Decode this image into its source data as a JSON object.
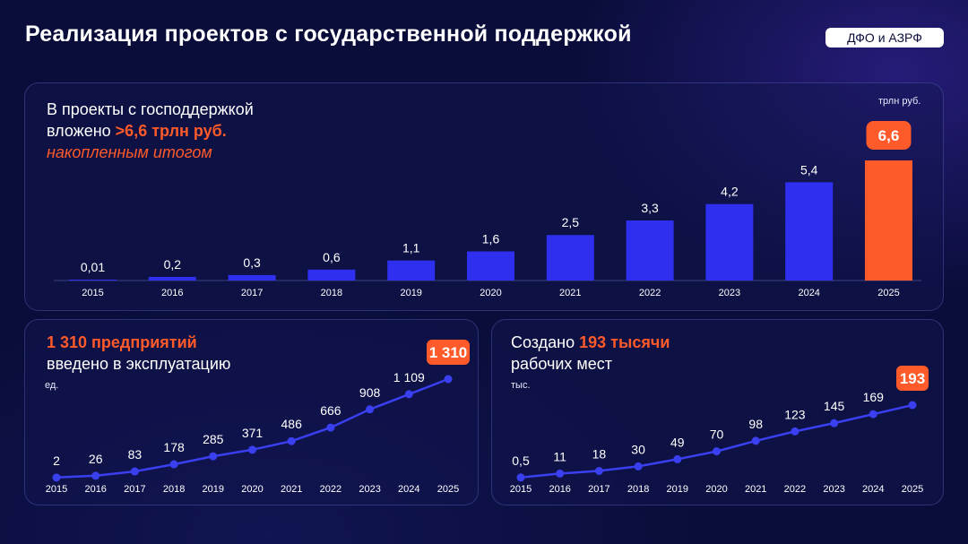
{
  "header": {
    "title": "Реализация проектов с государственной поддержкой",
    "badge": "ДФО и АЗРФ"
  },
  "colors": {
    "background": "#0a0d3a",
    "bar": "#2f2ff0",
    "highlight": "#ff5a2a",
    "line": "#3a3ff0"
  },
  "investments": {
    "headline_line1": "В проекты с господдержкой",
    "headline_line2_prefix": "вложено ",
    "headline_line2_accent": ">6,6 трлн руб.",
    "headline_line3": "накопленным итогом"
  },
  "enterprises": {
    "headline_accent": "1 310 предприятий",
    "headline_line2": "введено в эксплуатацию"
  },
  "jobs": {
    "headline_prefix": "Создано ",
    "headline_accent": "193 тысячи",
    "headline_line2": "рабочих мест"
  },
  "chart_data": [
    {
      "type": "bar",
      "unit_label": "трлн руб.",
      "categories": [
        "2015",
        "2016",
        "2017",
        "2018",
        "2019",
        "2020",
        "2021",
        "2022",
        "2023",
        "2024",
        "2025"
      ],
      "values": [
        0.01,
        0.2,
        0.3,
        0.6,
        1.1,
        1.6,
        2.5,
        3.3,
        4.2,
        5.4,
        6.6
      ],
      "value_labels": [
        "0,01",
        "0,2",
        "0,3",
        "0,6",
        "1,1",
        "1,6",
        "2,5",
        "3,3",
        "4,2",
        "5,4",
        "6,6"
      ],
      "highlight_index": 10,
      "ylim": [
        0,
        6.6
      ]
    },
    {
      "type": "line",
      "unit_label": "ед.",
      "categories": [
        "2015",
        "2016",
        "2017",
        "2018",
        "2019",
        "2020",
        "2021",
        "2022",
        "2023",
        "2024",
        "2025"
      ],
      "values": [
        2,
        26,
        83,
        178,
        285,
        371,
        486,
        666,
        908,
        1109,
        1310
      ],
      "value_labels": [
        "2",
        "26",
        "83",
        "178",
        "285",
        "371",
        "486",
        "666",
        "908",
        "1 109",
        "1 310"
      ],
      "highlight_index": 10,
      "ylim": [
        0,
        1310
      ]
    },
    {
      "type": "line",
      "unit_label": "тыс.",
      "categories": [
        "2015",
        "2016",
        "2017",
        "2018",
        "2019",
        "2020",
        "2021",
        "2022",
        "2023",
        "2024",
        "2025"
      ],
      "values": [
        0.5,
        11,
        18,
        30,
        49,
        70,
        98,
        123,
        145,
        169,
        193
      ],
      "value_labels": [
        "0,5",
        "11",
        "18",
        "30",
        "49",
        "70",
        "98",
        "123",
        "145",
        "169",
        "193"
      ],
      "highlight_index": 10,
      "ylim": [
        0,
        193
      ]
    }
  ]
}
